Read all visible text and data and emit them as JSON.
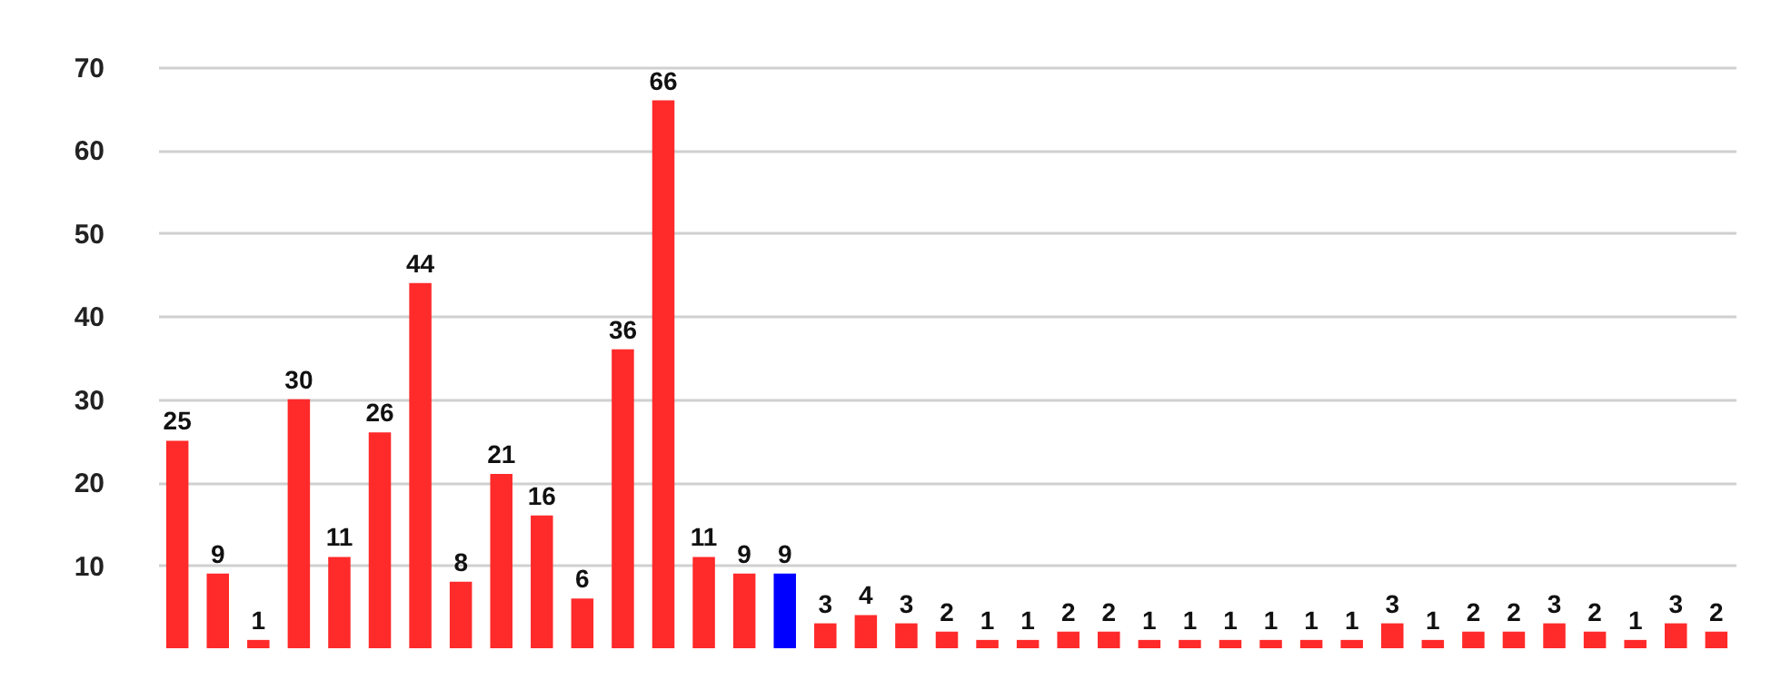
{
  "chart_data": {
    "type": "bar",
    "categories": [
      null,
      null,
      null,
      null,
      null,
      null,
      null,
      null,
      null,
      null,
      null,
      null,
      null,
      null,
      null,
      null,
      null,
      null,
      null,
      null,
      null,
      null,
      null,
      null,
      null,
      null,
      null,
      null,
      null,
      null,
      null,
      null,
      null,
      null,
      null,
      null,
      null,
      null,
      null
    ],
    "values": [
      25,
      9,
      1,
      30,
      11,
      26,
      44,
      8,
      21,
      16,
      6,
      36,
      66,
      11,
      9,
      9,
      3,
      4,
      3,
      2,
      1,
      1,
      2,
      2,
      1,
      1,
      1,
      1,
      1,
      1,
      3,
      1,
      2,
      2,
      3,
      2,
      1,
      3,
      2
    ],
    "colors": [
      "#ff2a2a",
      "#ff2a2a",
      "#ff2a2a",
      "#ff2a2a",
      "#ff2a2a",
      "#ff2a2a",
      "#ff2a2a",
      "#ff2a2a",
      "#ff2a2a",
      "#ff2a2a",
      "#ff2a2a",
      "#ff2a2a",
      "#ff2a2a",
      "#ff2a2a",
      "#ff2a2a",
      "#0000ff",
      "#ff2a2a",
      "#ff2a2a",
      "#ff2a2a",
      "#ff2a2a",
      "#ff2a2a",
      "#ff2a2a",
      "#ff2a2a",
      "#ff2a2a",
      "#ff2a2a",
      "#ff2a2a",
      "#ff2a2a",
      "#ff2a2a",
      "#ff2a2a",
      "#ff2a2a",
      "#ff2a2a",
      "#ff2a2a",
      "#ff2a2a",
      "#ff2a2a",
      "#ff2a2a",
      "#ff2a2a",
      "#ff2a2a",
      "#ff2a2a",
      "#ff2a2a"
    ],
    "ylim": [
      0,
      70
    ],
    "yticks": [
      10,
      20,
      30,
      40,
      50,
      60,
      70
    ],
    "grid": true,
    "data_labels": true
  }
}
